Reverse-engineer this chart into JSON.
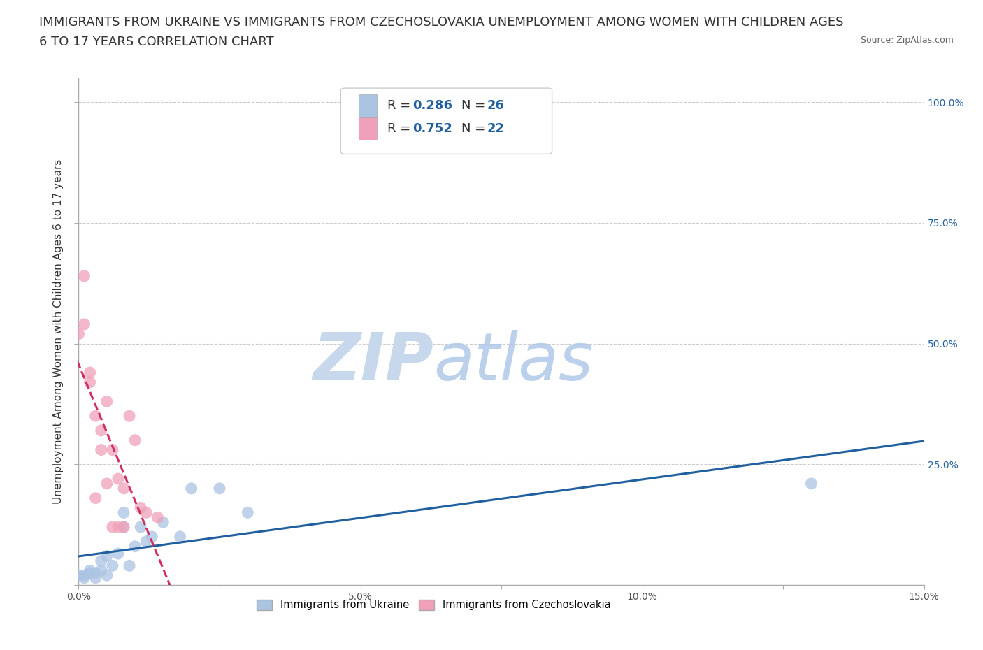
{
  "title_line1": "IMMIGRANTS FROM UKRAINE VS IMMIGRANTS FROM CZECHOSLOVAKIA UNEMPLOYMENT AMONG WOMEN WITH CHILDREN AGES",
  "title_line2": "6 TO 17 YEARS CORRELATION CHART",
  "source": "Source: ZipAtlas.com",
  "ylabel": "Unemployment Among Women with Children Ages 6 to 17 years",
  "xlim": [
    0.0,
    0.15
  ],
  "ylim": [
    0.0,
    1.05
  ],
  "xticks": [
    0.0,
    0.025,
    0.05,
    0.075,
    0.1,
    0.125,
    0.15
  ],
  "xticklabels": [
    "0.0%",
    "",
    "5.0%",
    "",
    "10.0%",
    "",
    "15.0%"
  ],
  "yticks": [
    0.0,
    0.25,
    0.5,
    0.75,
    1.0
  ],
  "ylabels_left": [
    "",
    "",
    "",
    "",
    ""
  ],
  "ylabels_right": [
    "",
    "25.0%",
    "50.0%",
    "75.0%",
    "100.0%"
  ],
  "ukraine_color": "#aac4e2",
  "ukraine_line_color": "#2060a0",
  "czech_color": "#f0a0b8",
  "czech_line_color": "#d03060",
  "ukraine_scatter_x": [
    0.0,
    0.001,
    0.001,
    0.002,
    0.002,
    0.003,
    0.003,
    0.004,
    0.004,
    0.005,
    0.005,
    0.006,
    0.007,
    0.008,
    0.008,
    0.009,
    0.01,
    0.011,
    0.012,
    0.013,
    0.015,
    0.018,
    0.02,
    0.025,
    0.03,
    0.13
  ],
  "ukraine_scatter_y": [
    0.02,
    0.015,
    0.02,
    0.03,
    0.025,
    0.015,
    0.025,
    0.05,
    0.03,
    0.02,
    0.06,
    0.04,
    0.065,
    0.12,
    0.15,
    0.04,
    0.08,
    0.12,
    0.09,
    0.1,
    0.13,
    0.1,
    0.2,
    0.2,
    0.15,
    0.21
  ],
  "czech_scatter_x": [
    0.0,
    0.001,
    0.001,
    0.002,
    0.002,
    0.003,
    0.003,
    0.004,
    0.004,
    0.005,
    0.005,
    0.006,
    0.006,
    0.007,
    0.007,
    0.008,
    0.008,
    0.009,
    0.01,
    0.011,
    0.012,
    0.014
  ],
  "czech_scatter_y": [
    0.52,
    0.54,
    0.64,
    0.42,
    0.44,
    0.18,
    0.35,
    0.28,
    0.32,
    0.21,
    0.38,
    0.12,
    0.28,
    0.12,
    0.22,
    0.12,
    0.2,
    0.35,
    0.3,
    0.16,
    0.15,
    0.14
  ],
  "watermark_zip": "ZIP",
  "watermark_atlas": "atlas",
  "watermark_color": "#ccddf0",
  "background_color": "#ffffff",
  "grid_color": "#cccccc",
  "title_fontsize": 13,
  "axis_label_fontsize": 11,
  "tick_fontsize": 10,
  "legend_fontsize": 13
}
